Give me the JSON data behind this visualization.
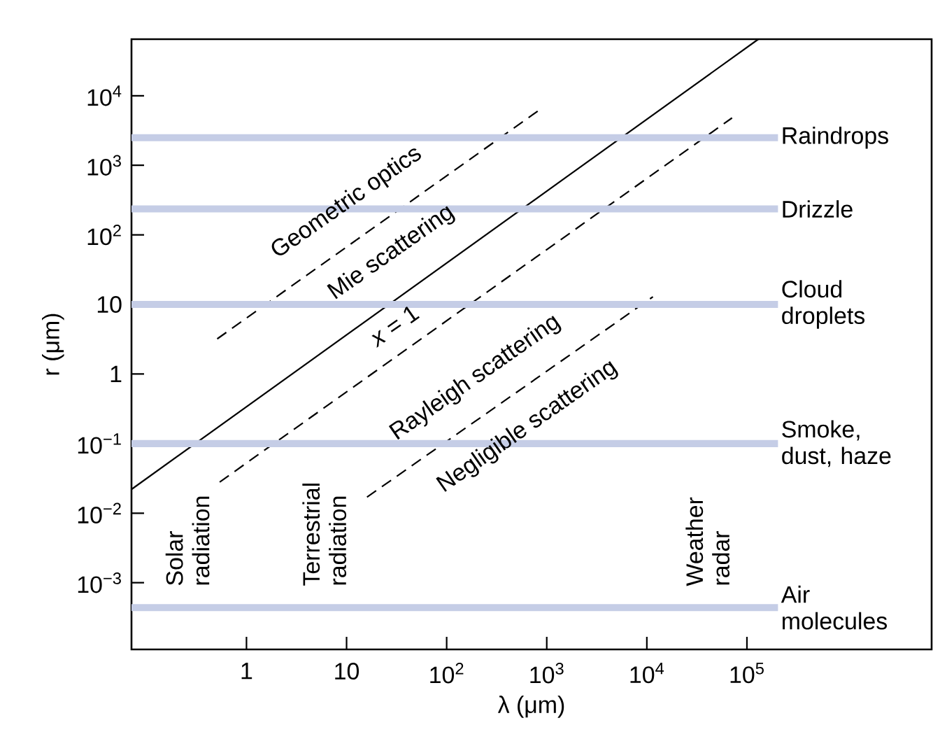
{
  "chart_data": {
    "type": "line",
    "xlabel": "λ (μm)",
    "ylabel": "r (μm)",
    "log": "xy",
    "xlim": [
      0.071,
      7000000
    ],
    "ylim": [
      0.00011,
      65000
    ],
    "xticks": [
      1,
      10,
      {
        "value": 100,
        "label": "10$^{2}$"
      },
      {
        "value": 1000,
        "label": "10$^{3}$"
      },
      {
        "value": 10000,
        "label": "10$^{4}$"
      },
      {
        "value": 100000,
        "label": "10$^{5}$"
      }
    ],
    "yticks": [
      {
        "value": 0.001,
        "label": "10$^{−3}$"
      },
      {
        "value": 0.01,
        "label": "10$^{−2}$"
      },
      {
        "value": 0.1,
        "label": "10$^{−1}$"
      },
      1,
      10,
      {
        "value": 100,
        "label": "10$^{2}$"
      },
      {
        "value": 1000,
        "label": "10$^{3}$"
      },
      {
        "value": 10000,
        "label": "10$^{4}$"
      }
    ],
    "series": [
      {
        "color": "#000000",
        "line_style": "solid",
        "x": [
          0.071,
          130000
        ],
        "values": [
          0.022,
          65000
        ]
      },
      {
        "color": "#000000",
        "line_style": "dashed",
        "x": [
          0.51,
          890
        ],
        "values": [
          3.2,
          6600
        ]
      },
      {
        "color": "#000000",
        "line_style": "dashed",
        "x": [
          0.54,
          71000
        ],
        "values": [
          0.028,
          4800
        ]
      },
      {
        "color": "#000000",
        "line_style": "dashed",
        "x": [
          16,
          11500
        ],
        "values": [
          0.017,
          12.9
        ]
      }
    ],
    "ref_lines": [
      {
        "axis": "y",
        "value": 2500,
        "label": "Raindrops",
        "color": "#c5cde6"
      },
      {
        "axis": "y",
        "value": 236,
        "label": "Drizzle",
        "color": "#c5cde6"
      },
      {
        "axis": "y",
        "value": 10,
        "label": "Cloud droplets",
        "color": "#c5cde6"
      },
      {
        "axis": "y",
        "value": 0.1,
        "label": "Smoke, dust, haze",
        "color": "#c5cde6"
      },
      {
        "axis": "y",
        "value": 0.00044,
        "label": "Air molecules",
        "color": "#c5cde6"
      }
    ],
    "annotations": [
      "Geometric optics",
      "Mie scattering",
      "Rayleigh scattering",
      "Negligible scattering",
      "*x* = 1",
      "Solar radiation",
      "Terrestrial radiation",
      "Weather radar"
    ]
  }
}
